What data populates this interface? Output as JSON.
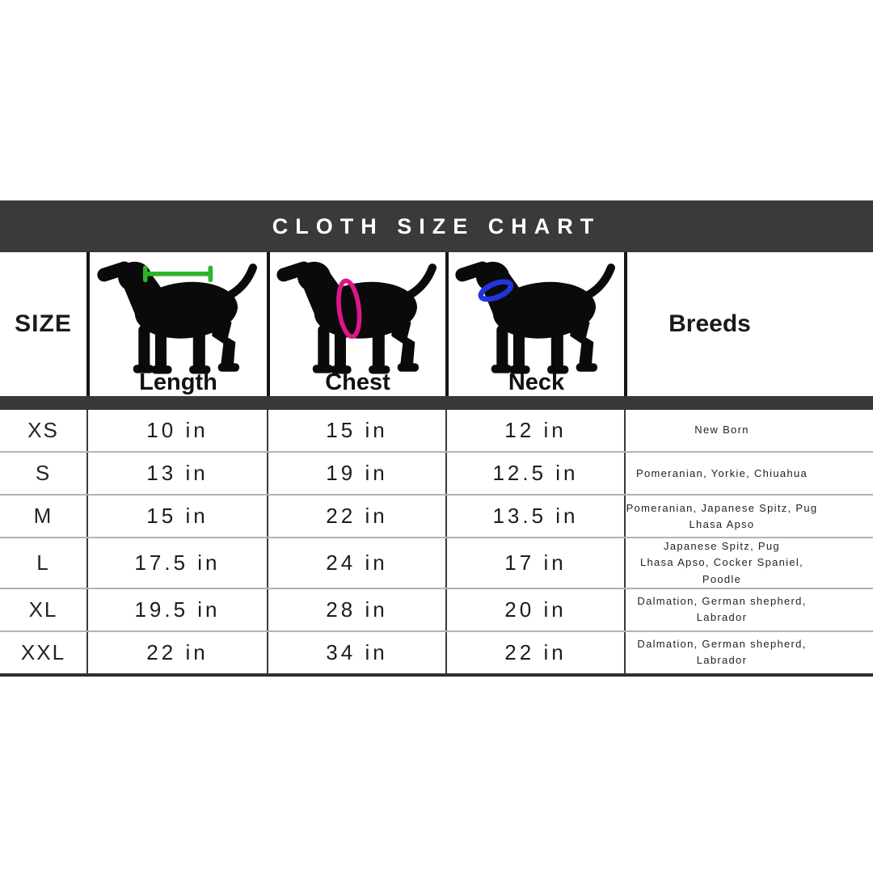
{
  "title": "CLOTH SIZE CHART",
  "header": {
    "size_label": "SIZE",
    "breeds_label": "Breeds",
    "measure_columns": [
      {
        "label": "Length",
        "icon": "dog-length-icon"
      },
      {
        "label": "Chest",
        "icon": "dog-chest-icon"
      },
      {
        "label": "Neck",
        "icon": "dog-neck-icon"
      }
    ]
  },
  "rows": [
    {
      "size": "XS",
      "length": "10 in",
      "chest": "15 in",
      "neck": "12 in",
      "breeds": "New Born"
    },
    {
      "size": "S",
      "length": "13 in",
      "chest": "19 in",
      "neck": "12.5 in",
      "breeds": "Pomeranian, Yorkie, Chiuahua"
    },
    {
      "size": "M",
      "length": "15 in",
      "chest": "22 in",
      "neck": "13.5 in",
      "breeds": "Pomeranian, Japanese Spitz, Pug\nLhasa Apso"
    },
    {
      "size": "L",
      "length": "17.5 in",
      "chest": "24 in",
      "neck": "17 in",
      "breeds": "Japanese Spitz, Pug\nLhasa Apso, Cocker Spaniel, Poodle"
    },
    {
      "size": "XL",
      "length": "19.5 in",
      "chest": "28 in",
      "neck": "20 in",
      "breeds": "Dalmation, German shepherd, Labrador"
    },
    {
      "size": "XXL",
      "length": "22 in",
      "chest": "34 in",
      "neck": "22 in",
      "breeds": "Dalmation, German shepherd, Labrador"
    }
  ],
  "colors": {
    "title_bar": "#3a3a3a",
    "silhouette": "#0a0a0a",
    "length_accent": "#2eb42a",
    "chest_accent": "#dd1688",
    "neck_accent": "#2135dd"
  },
  "chart_data": {
    "type": "table",
    "title": "CLOTH SIZE CHART",
    "columns": [
      "SIZE",
      "Length",
      "Chest",
      "Neck",
      "Breeds"
    ],
    "rows": [
      [
        "XS",
        "10 in",
        "15 in",
        "12 in",
        "New Born"
      ],
      [
        "S",
        "13 in",
        "19 in",
        "12.5 in",
        "Pomeranian, Yorkie, Chiuahua"
      ],
      [
        "M",
        "15 in",
        "22 in",
        "13.5 in",
        "Pomeranian, Japanese Spitz, Pug Lhasa Apso"
      ],
      [
        "L",
        "17.5 in",
        "24 in",
        "17 in",
        "Japanese Spitz, Pug Lhasa Apso, Cocker Spaniel, Poodle"
      ],
      [
        "XL",
        "19.5 in",
        "28 in",
        "20 in",
        "Dalmation, German shepherd, Labrador"
      ],
      [
        "XXL",
        "22 in",
        "34 in",
        "22 in",
        "Dalmation, German shepherd, Labrador"
      ]
    ]
  }
}
